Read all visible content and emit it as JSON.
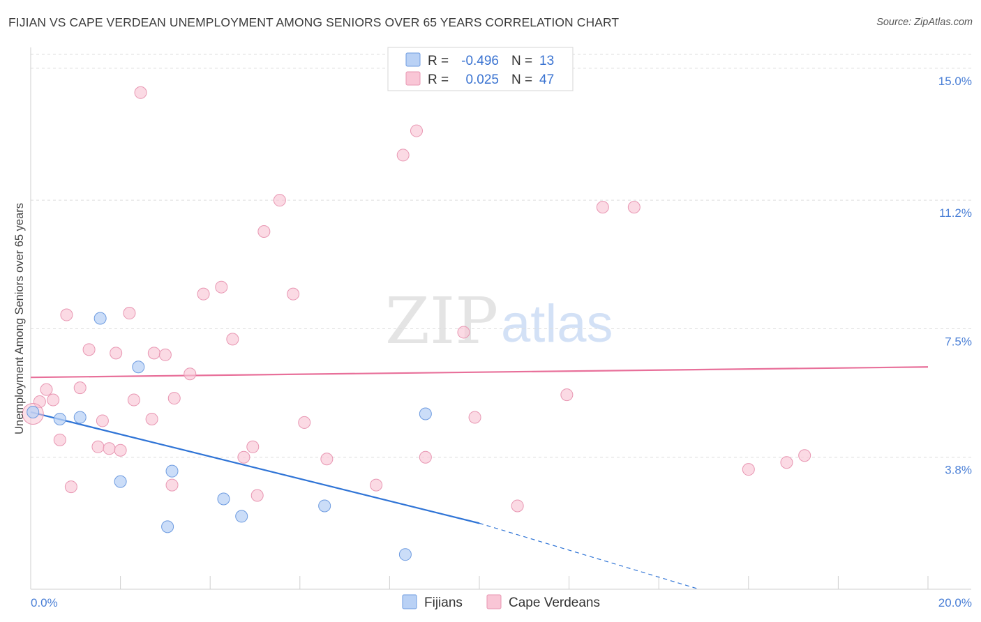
{
  "title": "FIJIAN VS CAPE VERDEAN UNEMPLOYMENT AMONG SENIORS OVER 65 YEARS CORRELATION CHART",
  "source": "Source: ZipAtlas.com",
  "watermark": {
    "zip": "ZIP",
    "atlas": "atlas"
  },
  "colors": {
    "fijian_fill": "#b9d1f5",
    "fijian_stroke": "#6d9be0",
    "fijian_line": "#2f74d6",
    "cape_fill": "#f9c6d6",
    "cape_stroke": "#e896b2",
    "cape_line": "#e8709a",
    "grid": "#dddddd",
    "tick_label": "#4a7fd6"
  },
  "legend": {
    "rows": [
      {
        "r_label": "R =",
        "r_value": "-0.496",
        "n_label": "N =",
        "n_value": "13"
      },
      {
        "r_label": "R =",
        "r_value": "0.025",
        "n_label": "N =",
        "n_value": "47"
      }
    ]
  },
  "chart_data": {
    "type": "scatter",
    "title": "FIJIAN VS CAPE VERDEAN UNEMPLOYMENT AMONG SENIORS OVER 65 YEARS CORRELATION CHART",
    "xlabel": "",
    "ylabel": "Unemployment Among Seniors over 65 years",
    "xlim": [
      0,
      20
    ],
    "ylim": [
      0,
      15.4
    ],
    "x_tick_labels": [
      "0.0%",
      "20.0%"
    ],
    "y_ticks": [
      3.8,
      7.5,
      11.2,
      15.0
    ],
    "y_tick_labels": [
      "3.8%",
      "7.5%",
      "11.2%",
      "15.0%"
    ],
    "series": [
      {
        "name": "Fijians",
        "r": -0.496,
        "n": 13,
        "points": [
          [
            0.05,
            5.1
          ],
          [
            0.65,
            4.9
          ],
          [
            1.1,
            4.95
          ],
          [
            1.55,
            7.8
          ],
          [
            2.0,
            3.1
          ],
          [
            2.4,
            6.4
          ],
          [
            3.05,
            1.8
          ],
          [
            3.15,
            3.4
          ],
          [
            4.3,
            2.6
          ],
          [
            4.7,
            2.1
          ],
          [
            6.55,
            2.4
          ],
          [
            8.35,
            1.0
          ],
          [
            8.8,
            5.05
          ]
        ],
        "trend": {
          "x0": 0,
          "y0": 5.1,
          "x1": 10,
          "y1": 1.9,
          "dash_x1": 14.9,
          "dash_y1": 0.0
        }
      },
      {
        "name": "Cape Verdeans",
        "r": 0.025,
        "n": 47,
        "points": [
          [
            0.2,
            5.4
          ],
          [
            0.35,
            5.75
          ],
          [
            0.5,
            5.45
          ],
          [
            0.65,
            4.3
          ],
          [
            0.8,
            7.9
          ],
          [
            0.9,
            2.95
          ],
          [
            1.1,
            5.8
          ],
          [
            1.3,
            6.9
          ],
          [
            1.5,
            4.1
          ],
          [
            1.6,
            4.85
          ],
          [
            1.75,
            4.05
          ],
          [
            1.9,
            6.8
          ],
          [
            2.0,
            4.0
          ],
          [
            2.2,
            7.95
          ],
          [
            2.3,
            5.45
          ],
          [
            2.45,
            14.3
          ],
          [
            2.7,
            4.9
          ],
          [
            2.75,
            6.8
          ],
          [
            3.0,
            6.75
          ],
          [
            3.15,
            3.0
          ],
          [
            3.2,
            5.5
          ],
          [
            3.55,
            6.2
          ],
          [
            3.85,
            8.5
          ],
          [
            4.25,
            8.7
          ],
          [
            4.5,
            7.2
          ],
          [
            4.75,
            3.8
          ],
          [
            4.95,
            4.1
          ],
          [
            5.05,
            2.7
          ],
          [
            5.2,
            10.3
          ],
          [
            5.55,
            11.2
          ],
          [
            5.85,
            8.5
          ],
          [
            6.1,
            4.8
          ],
          [
            6.6,
            3.75
          ],
          [
            7.7,
            3.0
          ],
          [
            8.3,
            12.5
          ],
          [
            8.6,
            13.2
          ],
          [
            8.8,
            3.8
          ],
          [
            9.65,
            7.4
          ],
          [
            9.9,
            4.95
          ],
          [
            10.85,
            2.4
          ],
          [
            11.95,
            5.6
          ],
          [
            12.75,
            11.0
          ],
          [
            13.45,
            11.0
          ],
          [
            16.0,
            3.45
          ],
          [
            16.85,
            3.65
          ],
          [
            17.25,
            3.85
          ],
          [
            0.05,
            5.05
          ]
        ],
        "trend": {
          "x0": 0,
          "y0": 6.1,
          "x1": 20,
          "y1": 6.4
        }
      }
    ]
  },
  "bottom_legend": [
    "Fijians",
    "Cape Verdeans"
  ]
}
